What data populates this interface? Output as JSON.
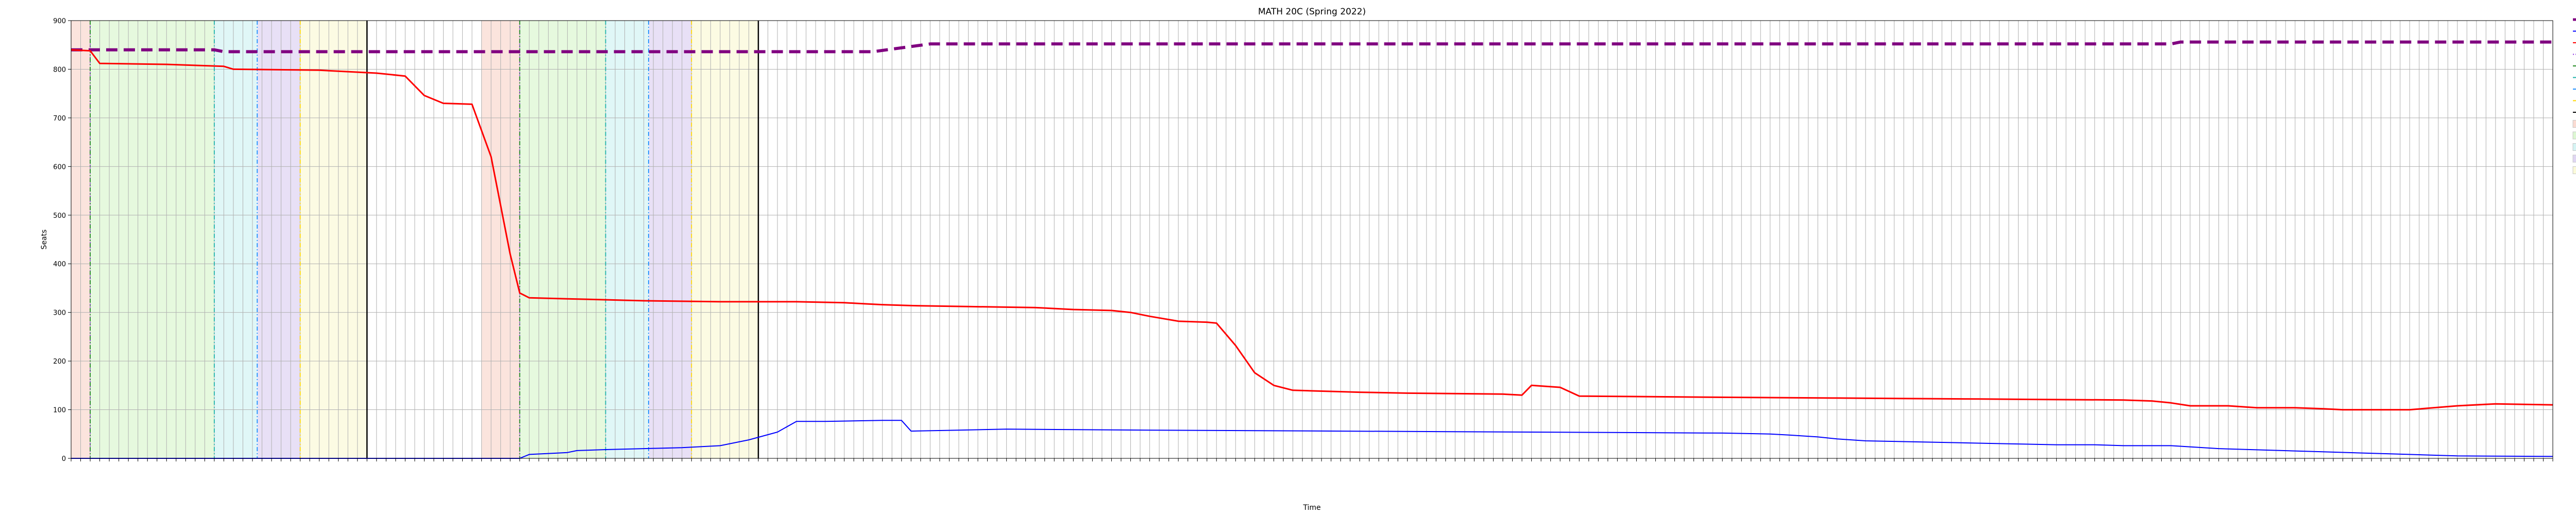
{
  "chart_data": {
    "type": "line",
    "title": "MATH 20C (Spring 2022)",
    "xlabel": "Time",
    "ylabel": "Seats",
    "ylim": [
      0,
      900
    ],
    "yticks": [
      0,
      100,
      200,
      300,
      400,
      500,
      600,
      700,
      800,
      900
    ],
    "grid": true,
    "legend_placement": "outside-right",
    "x_tick_labels_note": "dense rotated date-time tick labels, illegible at this resolution",
    "x": {
      "points": 521,
      "index_range": [
        0,
        520
      ]
    },
    "series": [
      {
        "name": "Total Seats",
        "color": "#800080",
        "style": "dashed",
        "values_by_index": [
          [
            0,
            840
          ],
          [
            4,
            840
          ],
          [
            6,
            840
          ],
          [
            30,
            840
          ],
          [
            32,
            836
          ],
          [
            152,
            836
          ],
          [
            168,
            836
          ],
          [
            180,
            852
          ],
          [
            440,
            852
          ],
          [
            442,
            856
          ],
          [
            520,
            856
          ]
        ]
      },
      {
        "name": "Waitlist",
        "color": "#0000ff",
        "style": "solid",
        "values_by_index": [
          [
            0,
            0
          ],
          [
            94,
            0
          ],
          [
            96,
            8
          ],
          [
            100,
            10
          ],
          [
            104,
            12
          ],
          [
            106,
            16
          ],
          [
            112,
            18
          ],
          [
            120,
            20
          ],
          [
            128,
            22
          ],
          [
            136,
            26
          ],
          [
            142,
            38
          ],
          [
            148,
            54
          ],
          [
            152,
            76
          ],
          [
            158,
            76
          ],
          [
            170,
            78
          ],
          [
            174,
            78
          ],
          [
            176,
            56
          ],
          [
            186,
            58
          ],
          [
            196,
            60
          ],
          [
            226,
            58
          ],
          [
            266,
            56
          ],
          [
            306,
            54
          ],
          [
            346,
            52
          ],
          [
            356,
            50
          ],
          [
            360,
            48
          ],
          [
            366,
            44
          ],
          [
            370,
            40
          ],
          [
            376,
            36
          ],
          [
            386,
            34
          ],
          [
            396,
            32
          ],
          [
            406,
            30
          ],
          [
            416,
            28
          ],
          [
            424,
            28
          ],
          [
            430,
            26
          ],
          [
            440,
            26
          ],
          [
            450,
            20
          ],
          [
            470,
            14
          ],
          [
            490,
            8
          ],
          [
            500,
            5
          ],
          [
            520,
            4
          ]
        ]
      },
      {
        "name": "Available",
        "color": "#ff0000",
        "style": "solid",
        "values_by_index": [
          [
            0,
            840
          ],
          [
            4,
            838
          ],
          [
            6,
            812
          ],
          [
            20,
            810
          ],
          [
            32,
            806
          ],
          [
            34,
            800
          ],
          [
            52,
            798
          ],
          [
            64,
            792
          ],
          [
            70,
            786
          ],
          [
            74,
            746
          ],
          [
            78,
            730
          ],
          [
            84,
            728
          ],
          [
            88,
            620
          ],
          [
            92,
            420
          ],
          [
            94,
            340
          ],
          [
            96,
            330
          ],
          [
            104,
            328
          ],
          [
            120,
            324
          ],
          [
            136,
            322
          ],
          [
            152,
            322
          ],
          [
            162,
            320
          ],
          [
            166,
            318
          ],
          [
            170,
            316
          ],
          [
            176,
            314
          ],
          [
            188,
            312
          ],
          [
            202,
            310
          ],
          [
            210,
            306
          ],
          [
            218,
            304
          ],
          [
            222,
            300
          ],
          [
            226,
            292
          ],
          [
            232,
            282
          ],
          [
            238,
            280
          ],
          [
            240,
            278
          ],
          [
            244,
            232
          ],
          [
            248,
            176
          ],
          [
            252,
            150
          ],
          [
            256,
            140
          ],
          [
            270,
            136
          ],
          [
            280,
            134
          ],
          [
            300,
            132
          ],
          [
            304,
            130
          ],
          [
            306,
            150
          ],
          [
            312,
            146
          ],
          [
            316,
            128
          ],
          [
            340,
            126
          ],
          [
            370,
            124
          ],
          [
            400,
            122
          ],
          [
            430,
            120
          ],
          [
            436,
            118
          ],
          [
            440,
            114
          ],
          [
            444,
            108
          ],
          [
            452,
            108
          ],
          [
            458,
            104
          ],
          [
            466,
            104
          ],
          [
            472,
            102
          ],
          [
            476,
            100
          ],
          [
            490,
            100
          ],
          [
            500,
            108
          ],
          [
            508,
            112
          ],
          [
            520,
            110
          ]
        ]
      }
    ],
    "verticals": [
      {
        "name": "Priorities Start",
        "color": "#8a2be2",
        "style": "dotted"
      },
      {
        "name": "Seniors Start",
        "color": "#228b22",
        "style": "dashdot"
      },
      {
        "name": "Juniors Start",
        "color": "#20b2aa",
        "style": "dashdot"
      },
      {
        "name": "Sophomores Start",
        "color": "#1e90ff",
        "style": "dashdot"
      },
      {
        "name": "Freshmen Start",
        "color": "#ffd700",
        "style": "dashdot"
      },
      {
        "name": "End (FP/SP)",
        "color": "#000000",
        "style": "solid"
      }
    ],
    "spans": [
      {
        "name": "Priorities Start",
        "color": "#fadbd2"
      },
      {
        "name": "Seniors Start",
        "color": "#ddf7d3"
      },
      {
        "name": "Juniors Start",
        "color": "#d5f4f4"
      },
      {
        "name": "Sophomores Start",
        "color": "#e0d6f3"
      },
      {
        "name": "Freshmen Start",
        "color": "#fbfad9"
      }
    ],
    "legend": [
      "Total Seats",
      "Waitlist",
      "Available",
      "Priorities Start",
      "Seniors Start",
      "Juniors Start",
      "Sophomores Start",
      "Freshmen Start",
      "End (FP/SP)",
      "Priorities Start",
      "Seniors Start",
      "Juniors Start",
      "Sophomores Start",
      "Freshmen Start"
    ]
  }
}
